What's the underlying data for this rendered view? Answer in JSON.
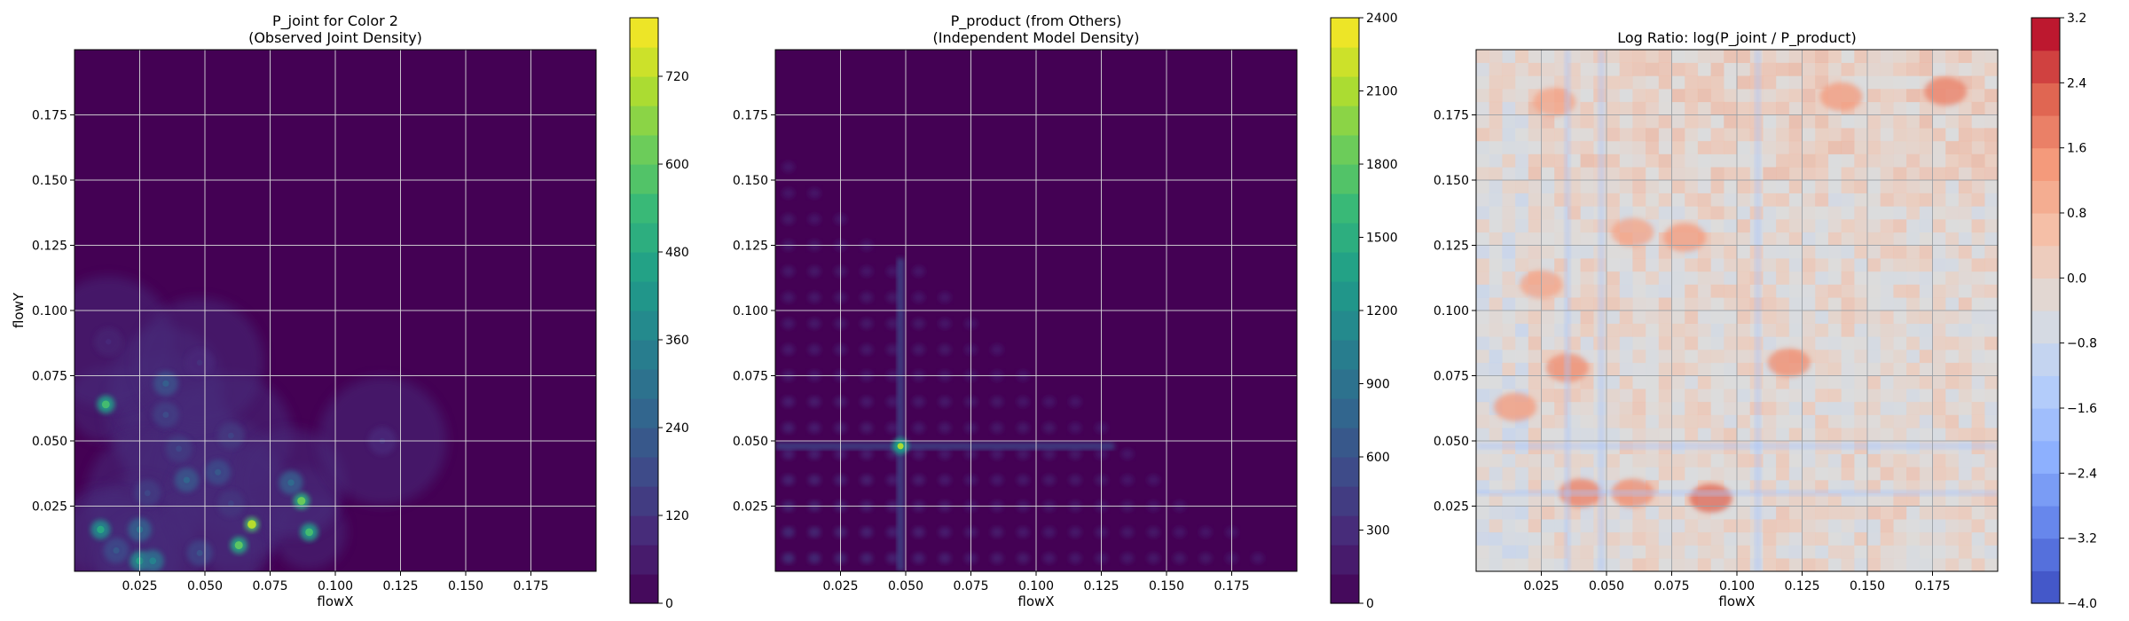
{
  "chart_data": [
    {
      "type": "heatmap",
      "title": "P_joint for Color 2\n(Observed Joint Density)",
      "title_lines": [
        "P_joint for Color 2",
        "(Observed Joint Density)"
      ],
      "xlabel": "flowX",
      "ylabel": "flowY",
      "xlim": [
        0,
        0.2
      ],
      "ylim": [
        0,
        0.2
      ],
      "xticks": [
        "0.025",
        "0.050",
        "0.075",
        "0.100",
        "0.125",
        "0.150",
        "0.175"
      ],
      "yticks": [
        "0.025",
        "0.050",
        "0.075",
        "0.100",
        "0.125",
        "0.150",
        "0.175"
      ],
      "grid": true,
      "colormap": "viridis",
      "colorbar": {
        "min": 0,
        "max": 800,
        "ticks": [
          "0",
          "120",
          "240",
          "360",
          "480",
          "600",
          "720"
        ]
      },
      "hotspots": [
        {
          "x": 0.012,
          "y": 0.064,
          "value": 560
        },
        {
          "x": 0.035,
          "y": 0.06,
          "value": 180
        },
        {
          "x": 0.035,
          "y": 0.072,
          "value": 240
        },
        {
          "x": 0.04,
          "y": 0.047,
          "value": 170
        },
        {
          "x": 0.043,
          "y": 0.035,
          "value": 260
        },
        {
          "x": 0.055,
          "y": 0.038,
          "value": 220
        },
        {
          "x": 0.06,
          "y": 0.052,
          "value": 160
        },
        {
          "x": 0.028,
          "y": 0.03,
          "value": 170
        },
        {
          "x": 0.01,
          "y": 0.016,
          "value": 480
        },
        {
          "x": 0.025,
          "y": 0.016,
          "value": 300
        },
        {
          "x": 0.025,
          "y": 0.004,
          "value": 460
        },
        {
          "x": 0.03,
          "y": 0.004,
          "value": 360
        },
        {
          "x": 0.016,
          "y": 0.008,
          "value": 220
        },
        {
          "x": 0.063,
          "y": 0.01,
          "value": 600
        },
        {
          "x": 0.068,
          "y": 0.018,
          "value": 720
        },
        {
          "x": 0.06,
          "y": 0.026,
          "value": 150
        },
        {
          "x": 0.087,
          "y": 0.027,
          "value": 620
        },
        {
          "x": 0.09,
          "y": 0.015,
          "value": 560
        },
        {
          "x": 0.083,
          "y": 0.034,
          "value": 280
        },
        {
          "x": 0.118,
          "y": 0.05,
          "value": 110
        },
        {
          "x": 0.013,
          "y": 0.088,
          "value": 90
        },
        {
          "x": 0.048,
          "y": 0.08,
          "value": 110
        },
        {
          "x": 0.048,
          "y": 0.007,
          "value": 200
        }
      ]
    },
    {
      "type": "heatmap",
      "title": "P_product (from Others)\n(Independent Model Density)",
      "title_lines": [
        "P_product (from Others)",
        "(Independent Model Density)"
      ],
      "xlabel": "flowX",
      "ylabel": "",
      "xlim": [
        0,
        0.2
      ],
      "ylim": [
        0,
        0.2
      ],
      "xticks": [
        "0.025",
        "0.050",
        "0.075",
        "0.100",
        "0.125",
        "0.150",
        "0.175"
      ],
      "yticks": [
        "0.025",
        "0.050",
        "0.075",
        "0.100",
        "0.125",
        "0.150",
        "0.175"
      ],
      "grid": true,
      "colormap": "viridis",
      "colorbar": {
        "min": 0,
        "max": 2400,
        "ticks": [
          "0",
          "300",
          "600",
          "900",
          "1200",
          "1500",
          "1800",
          "2100",
          "2400"
        ]
      },
      "peak": {
        "x": 0.048,
        "y": 0.048,
        "value": 2100
      },
      "ridge_x": 0.048,
      "ridge_y": 0.048
    },
    {
      "type": "heatmap",
      "title": "Log Ratio: log(P_joint / P_product)",
      "xlabel": "flowX",
      "ylabel": "",
      "xlim": [
        0,
        0.2
      ],
      "ylim": [
        0,
        0.2
      ],
      "xticks": [
        "0.025",
        "0.050",
        "0.075",
        "0.100",
        "0.125",
        "0.150",
        "0.175"
      ],
      "yticks": [
        "0.025",
        "0.050",
        "0.075",
        "0.100",
        "0.125",
        "0.150",
        "0.175"
      ],
      "grid": true,
      "colormap": "coolwarm",
      "colorbar": {
        "min": -4.0,
        "max": 3.2,
        "ticks": [
          "3.2",
          "2.4",
          "1.6",
          "0.8",
          "0.0",
          "−0.8",
          "−1.6",
          "−2.4",
          "−3.2",
          "−4.0"
        ]
      },
      "warm_regions": [
        {
          "x": 0.09,
          "y": 0.028,
          "value": 2.2
        },
        {
          "x": 0.04,
          "y": 0.03,
          "value": 1.8
        },
        {
          "x": 0.06,
          "y": 0.03,
          "value": 1.6
        },
        {
          "x": 0.12,
          "y": 0.08,
          "value": 1.6
        },
        {
          "x": 0.035,
          "y": 0.078,
          "value": 1.6
        },
        {
          "x": 0.015,
          "y": 0.063,
          "value": 1.4
        },
        {
          "x": 0.18,
          "y": 0.184,
          "value": 1.8
        },
        {
          "x": 0.14,
          "y": 0.182,
          "value": 1.4
        },
        {
          "x": 0.03,
          "y": 0.18,
          "value": 1.2
        },
        {
          "x": 0.08,
          "y": 0.128,
          "value": 1.4
        },
        {
          "x": 0.06,
          "y": 0.13,
          "value": 1.2
        },
        {
          "x": 0.025,
          "y": 0.11,
          "value": 1.2
        }
      ],
      "cool_bands_x": [
        0.048,
        0.035,
        0.108
      ],
      "cool_bands_y": [
        0.048,
        0.03
      ]
    }
  ]
}
